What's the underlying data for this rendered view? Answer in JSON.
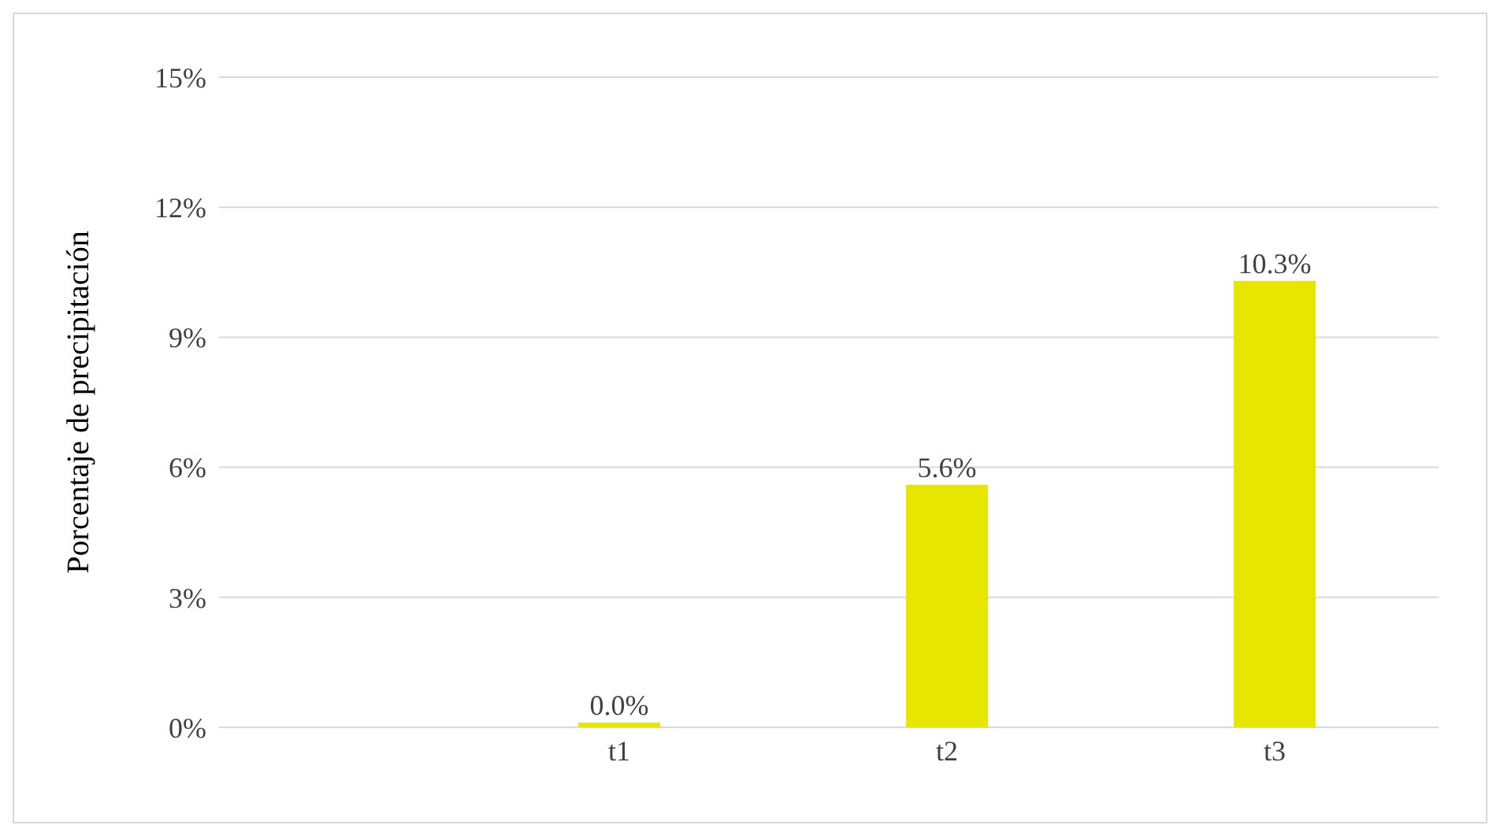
{
  "chart_data": {
    "type": "bar",
    "ylabel": "Porcentaje de precipitación",
    "categories": [
      "t1",
      "t2",
      "t3"
    ],
    "values": [
      0,
      5.6,
      10.3
    ],
    "value_labels": [
      "0.0%",
      "5.6%",
      "10.3%"
    ],
    "color": "#e6e600",
    "ylim": [
      0,
      15
    ],
    "yticks": [
      {
        "value": 0,
        "label": "0%"
      },
      {
        "value": 3,
        "label": "3%"
      },
      {
        "value": 6,
        "label": "6%"
      },
      {
        "value": 9,
        "label": "9%"
      },
      {
        "value": 12,
        "label": "12%"
      },
      {
        "value": 15,
        "label": "15%"
      }
    ],
    "grid": "y"
  }
}
